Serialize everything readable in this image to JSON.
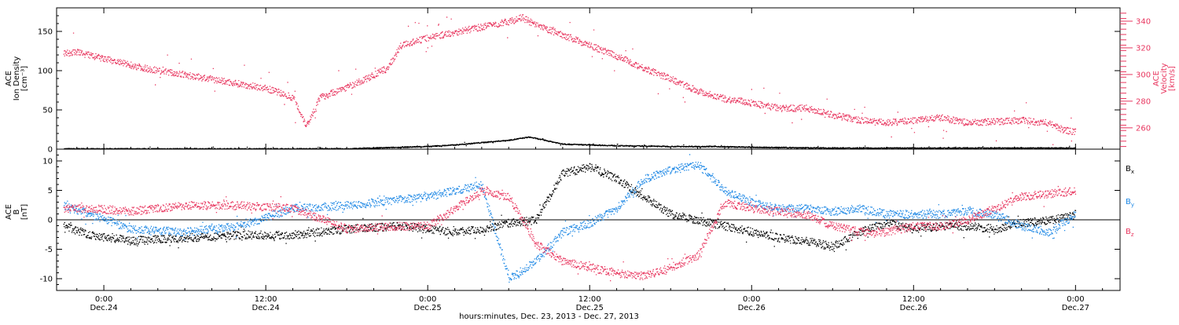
{
  "colors": {
    "black": "#000000",
    "pink": "#e8365f",
    "blue": "#1e88e5"
  },
  "chart_data": [
    {
      "type": "scatter",
      "panel": "top",
      "ylabel_left": [
        "ACE",
        "Ion Density",
        "[cm⁻³]"
      ],
      "ylabel_right": [
        "ACE",
        "Velocity",
        "[km/s]"
      ],
      "left_ylim": [
        0,
        180
      ],
      "left_yticks": [
        "0",
        "50",
        "100",
        "150"
      ],
      "right_ylim": [
        244,
        350
      ],
      "right_yticks": [
        "260",
        "280",
        "300",
        "320",
        "340"
      ],
      "x_unit": "hours since 00:00 Dec.24",
      "xlim": [
        -3.5,
        75.3
      ],
      "series": [
        {
          "axis": "left",
          "color_key": "black",
          "x": [
            -3,
            0,
            6,
            12,
            18,
            22,
            24,
            26,
            28,
            30,
            31.5,
            34,
            38,
            42,
            45,
            48,
            54,
            60,
            66,
            72
          ],
          "values": [
            1,
            1,
            1,
            1,
            1,
            3,
            4,
            6,
            9,
            12,
            16,
            7,
            5,
            4,
            4,
            3,
            2,
            2,
            2,
            2
          ]
        },
        {
          "axis": "right",
          "color_key": "pink",
          "x": [
            -3,
            -2,
            0,
            3,
            6,
            9,
            12,
            14,
            15,
            16,
            19,
            21,
            22,
            24,
            26,
            28,
            30,
            31,
            32,
            34,
            36,
            38,
            40,
            42,
            44,
            46,
            48,
            50,
            52,
            54,
            56,
            58,
            60,
            62,
            64,
            66,
            68,
            70,
            71,
            72
          ],
          "values": [
            316,
            317,
            312,
            305,
            300,
            295,
            290,
            283,
            262,
            283,
            295,
            305,
            322,
            328,
            332,
            336,
            340,
            343,
            337,
            330,
            322,
            314,
            305,
            297,
            288,
            282,
            279,
            275,
            275,
            270,
            266,
            264,
            266,
            268,
            264,
            265,
            266,
            264,
            259,
            257
          ]
        }
      ],
      "title": "",
      "xlabel": ""
    },
    {
      "type": "scatter",
      "panel": "bottom",
      "ylabel_left": [
        "ACE",
        "B",
        "[nT]"
      ],
      "ylim": [
        -12,
        12
      ],
      "yticks": [
        "-10",
        "-5",
        "0",
        "5",
        "10"
      ],
      "x_unit": "hours since 00:00 Dec.24",
      "xlim": [
        -3.5,
        75.3
      ],
      "legend_placement": "right",
      "legend": [
        {
          "label": "B",
          "sub": "x",
          "color_key": "black"
        },
        {
          "label": "B",
          "sub": "y",
          "color_key": "blue"
        },
        {
          "label": "B",
          "sub": "z",
          "color_key": "pink"
        }
      ],
      "series": [
        {
          "name": "Bx",
          "color_key": "black",
          "x": [
            -3,
            -1,
            2,
            6,
            10,
            14,
            18,
            22,
            26,
            28,
            30,
            32,
            34,
            36,
            38,
            40,
            42,
            44,
            46,
            48,
            50,
            52,
            54,
            56,
            58,
            60,
            62,
            64,
            66,
            68,
            70,
            72
          ],
          "values": [
            -1,
            -2.5,
            -3.5,
            -3,
            -2.5,
            -2.5,
            -1.5,
            -1,
            -2,
            -1.5,
            -0.5,
            0,
            8,
            9,
            7,
            4,
            1,
            0,
            -1,
            -2,
            -3,
            -3.5,
            -4.5,
            -2,
            -0.5,
            -1.5,
            -1,
            -1,
            -1.5,
            -0.5,
            0,
            1
          ]
        },
        {
          "name": "By",
          "color_key": "blue",
          "x": [
            -3,
            -1,
            2,
            6,
            10,
            14,
            18,
            22,
            24,
            26,
            28,
            30,
            32,
            34,
            36,
            38,
            40,
            42,
            44,
            46,
            48,
            50,
            52,
            54,
            56,
            58,
            60,
            62,
            64,
            66,
            68,
            70,
            72
          ],
          "values": [
            2.5,
            1,
            -1.5,
            -2,
            -1,
            2,
            2.5,
            3.5,
            4,
            5,
            6,
            -10,
            -7,
            -2,
            -0.5,
            2,
            7,
            8.5,
            9.5,
            5,
            3,
            2,
            2,
            1.5,
            2,
            1,
            1,
            1,
            1.5,
            1,
            -1,
            -2,
            1
          ]
        },
        {
          "name": "Bz",
          "color_key": "pink",
          "x": [
            -3,
            -1,
            2,
            6,
            10,
            14,
            18,
            22,
            24,
            26,
            28,
            30,
            32,
            34,
            36,
            38,
            40,
            42,
            44,
            46,
            48,
            50,
            52,
            54,
            56,
            58,
            60,
            62,
            64,
            66,
            68,
            70,
            72
          ],
          "values": [
            2,
            2,
            1.5,
            2.5,
            2.5,
            2,
            -1.5,
            -1,
            -1,
            2,
            5,
            4,
            -4,
            -7,
            -8,
            -9,
            -9.5,
            -8,
            -6,
            3,
            2,
            1.5,
            1,
            -1,
            -2,
            -2,
            -1,
            -1,
            0,
            2,
            4,
            4.5,
            5
          ]
        }
      ],
      "title": "",
      "xlabel": ""
    }
  ],
  "x_axis": {
    "ticks": [
      {
        "time": "0:00",
        "date": "Dec.24",
        "hour": 0
      },
      {
        "time": "12:00",
        "date": "Dec.24",
        "hour": 12
      },
      {
        "time": "0:00",
        "date": "Dec.25",
        "hour": 24
      },
      {
        "time": "12:00",
        "date": "Dec.25",
        "hour": 36
      },
      {
        "time": "0:00",
        "date": "Dec.26",
        "hour": 48
      },
      {
        "time": "12:00",
        "date": "Dec.26",
        "hour": 60
      },
      {
        "time": "0:00",
        "date": "Dec.27",
        "hour": 72
      }
    ],
    "title": "hours:minutes, Dec. 23, 2013 - Dec. 27, 2013"
  }
}
